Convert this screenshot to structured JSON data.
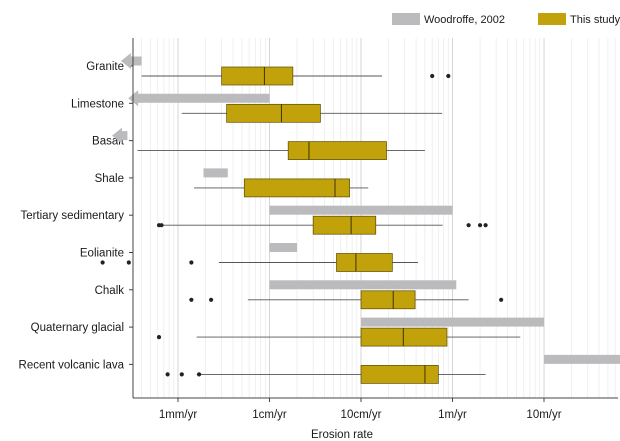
{
  "chart_data": {
    "type": "box",
    "xlabel": "Erosion rate",
    "xscale": "log",
    "xlim_m_per_yr": [
      0.0001,
      300
    ],
    "x_ticks": [
      {
        "value": 0.001,
        "label": "1mm/yr"
      },
      {
        "value": 0.01,
        "label": "1cm/yr"
      },
      {
        "value": 0.1,
        "label": "10cm/yr"
      },
      {
        "value": 1,
        "label": "1m/yr"
      },
      {
        "value": 10,
        "label": "10m/yr"
      }
    ],
    "grid": true,
    "legend_position": "top-right",
    "legend": [
      {
        "key": "woodroffe",
        "label": "Woodroffe, 2002",
        "color": "#bbbabc"
      },
      {
        "key": "study",
        "label": "This study",
        "color": "#c2a20a"
      }
    ],
    "colors": {
      "woodroffe": "#bbbabc",
      "study": "#c2a20a",
      "outlier": "#222222",
      "whisker": "#555555"
    },
    "categories": [
      {
        "name": "Granite",
        "woodroffe": {
          "min": 0.00025,
          "max": 0.0004,
          "arrow": "left"
        },
        "study": {
          "whisker_low": 0.0004,
          "q1": 0.003,
          "median": 0.0088,
          "q3": 0.018,
          "whisker_high": 0.17,
          "outliers": [
            0.6,
            0.9
          ]
        }
      },
      {
        "name": "Limestone",
        "woodroffe": {
          "min": 0.0003,
          "max": 0.01,
          "arrow": "left"
        },
        "study": {
          "whisker_low": 0.0011,
          "q1": 0.0034,
          "median": 0.0135,
          "q3": 0.036,
          "whisker_high": 0.77,
          "outliers": []
        }
      },
      {
        "name": "Basalt",
        "woodroffe": {
          "min": 0.0002,
          "max": 0.00028,
          "arrow": "left"
        },
        "study": {
          "whisker_low": 0.00036,
          "q1": 0.016,
          "median": 0.027,
          "q3": 0.19,
          "whisker_high": 0.5,
          "outliers": []
        }
      },
      {
        "name": "Shale",
        "woodroffe": {
          "min": 0.0019,
          "max": 0.0035
        },
        "study": {
          "whisker_low": 0.0015,
          "q1": 0.0053,
          "median": 0.052,
          "q3": 0.075,
          "whisker_high": 0.12,
          "outliers": []
        }
      },
      {
        "name": "Tertiary sedimentary",
        "woodroffe": {
          "min": 0.01,
          "max": 1
        },
        "study": {
          "whisker_low": 0.00065,
          "q1": 0.03,
          "median": 0.078,
          "q3": 0.145,
          "whisker_high": 0.78,
          "outliers": [
            0.00062,
            0.00066,
            1.5,
            2.0,
            2.3
          ]
        }
      },
      {
        "name": "Eolianite",
        "woodroffe": {
          "min": 0.01,
          "max": 0.02
        },
        "study": {
          "whisker_low": 0.0028,
          "q1": 0.054,
          "median": 0.088,
          "q3": 0.22,
          "whisker_high": 0.42,
          "outliers": [
            0.00015,
            0.00029,
            0.0014
          ]
        }
      },
      {
        "name": "Chalk",
        "woodroffe": {
          "min": 0.01,
          "max": 1.1
        },
        "study": {
          "whisker_low": 0.0058,
          "q1": 0.1,
          "median": 0.225,
          "q3": 0.39,
          "whisker_high": 1.5,
          "outliers": [
            0.0014,
            0.0023,
            3.4
          ]
        }
      },
      {
        "name": "Quaternary glacial",
        "woodroffe": {
          "min": 0.1,
          "max": 10
        },
        "study": {
          "whisker_low": 0.0016,
          "q1": 0.1,
          "median": 0.29,
          "q3": 0.87,
          "whisker_high": 5.5,
          "outliers": [
            0.00062,
            72
          ]
        }
      },
      {
        "name": "Recent volcanic lava",
        "woodroffe": {
          "min": 10,
          "max": 150,
          "arrow": "right"
        },
        "study": {
          "whisker_low": 0.0016,
          "q1": 0.1,
          "median": 0.5,
          "q3": 0.7,
          "whisker_high": 2.3,
          "outliers": [
            0.00077,
            0.0011,
            0.0017
          ]
        }
      }
    ]
  }
}
